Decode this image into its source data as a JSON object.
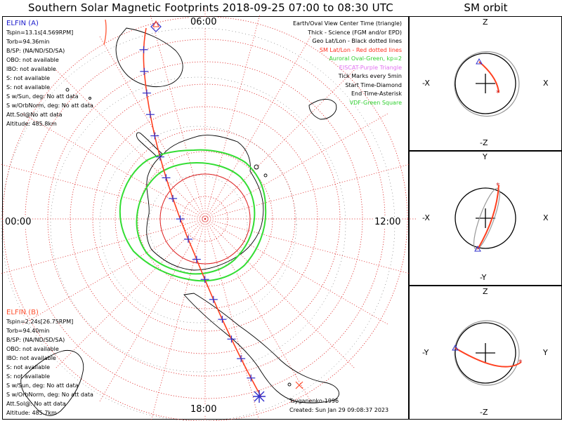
{
  "title": "Southern Solar Magnetic Footprints 2018-09-25 07:00 to 08:30 UTC",
  "side_title": "SM orbit",
  "clock_labels": {
    "top": "06:00",
    "left": "00:00",
    "right": "12:00",
    "bottom": "18:00"
  },
  "elfin_a": {
    "name": "ELFIN (A)",
    "lines": [
      "Tspin=13.1s[4.569RPM]",
      "Torb=94.36min",
      "B/SP: (NA/ND/SD/SA)",
      "OBO: not available",
      "IBO: not available",
      "S: not available",
      "S: not available",
      "S w/Sun, deg: No att data",
      "S w/OrbNorm, deg: No att data",
      "Att.Sol@No att data",
      "Altitude: 485.8km"
    ]
  },
  "elfin_b": {
    "name": "ELFIN (B)",
    "lines": [
      "Tspin=2.24s[26.75RPM]",
      "Torb=94.40min",
      "B/SP: (NA/ND/SD/SA)",
      "OBO: not available",
      "IBO: not available",
      "S: not available",
      "S: not available",
      "S w/Sun, deg: No att data",
      "S w/OrbNorm, deg: No att data",
      "Att.Sol@: No att data",
      "Altitude: 485.7km"
    ]
  },
  "legend": [
    {
      "text": "Earth/Oval View Center Time (triangle)",
      "color": "black"
    },
    {
      "text": "Thick - Science (FGM and/or EPD)",
      "color": "black"
    },
    {
      "text": "Geo Lat/Lon - Black dotted lines",
      "color": "black"
    },
    {
      "text": "SM Lat/Lon - Red dotted lines",
      "color": "red"
    },
    {
      "text": "Auroral Oval-Green, kp=2",
      "color": "green"
    },
    {
      "text": "EISCAT-Purple Triangle",
      "color": "purple"
    },
    {
      "text": "Tick Marks every 5min",
      "color": "black"
    },
    {
      "text": "Start Time-Diamond",
      "color": "black"
    },
    {
      "text": "End Time-Asterisk",
      "color": "black"
    },
    {
      "text": "VDF-Green Square",
      "color": "green"
    }
  ],
  "credit": {
    "author": "Tsyganenko-1996",
    "created": "Created: Sun Jan 29 09:08:37 2023"
  },
  "orbit_panels": [
    {
      "top": "Z",
      "bottom": "-Z",
      "left": "-X",
      "right": "X"
    },
    {
      "top": "Y",
      "bottom": "-Y",
      "left": "-X",
      "right": "X"
    },
    {
      "top": "Z",
      "bottom": "-Z",
      "left": "-Y",
      "right": "Y"
    }
  ],
  "colors": {
    "track_a": "#ff4020",
    "track_b": "#ff6040",
    "sm_grid": "#dd2222",
    "geo_grid": "#000000",
    "oval": "#33dd33",
    "ticks": "#3030cc",
    "elfin_a_label": "#1a1acc",
    "elfin_b_label": "#ff5030"
  }
}
